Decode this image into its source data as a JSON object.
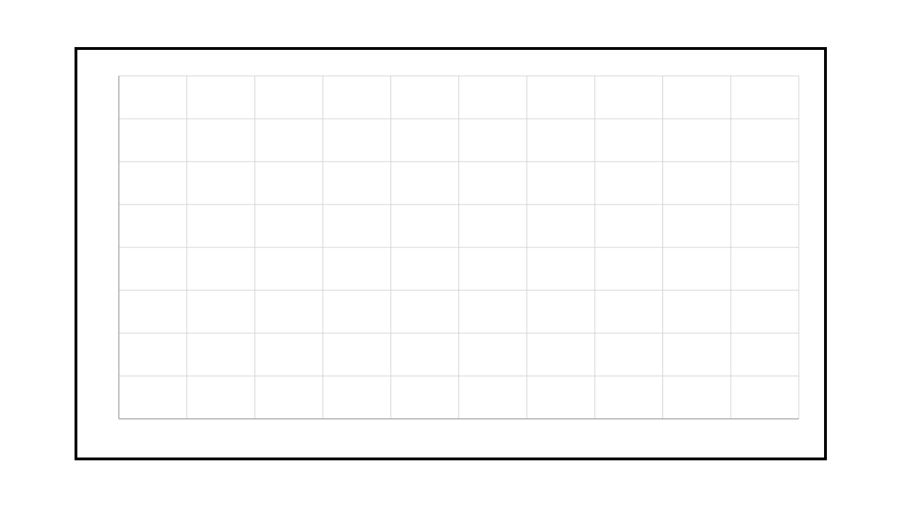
{
  "chart_data": {
    "type": "line",
    "title": "",
    "xlabel": "",
    "ylabel": "",
    "x_gridlines": 10,
    "y_gridlines": 8,
    "grid": true,
    "series": []
  },
  "colors": {
    "frame_border": "#000000",
    "grid": "#d0d0d0",
    "axis": "#a6a6a6",
    "background": "#ffffff"
  }
}
